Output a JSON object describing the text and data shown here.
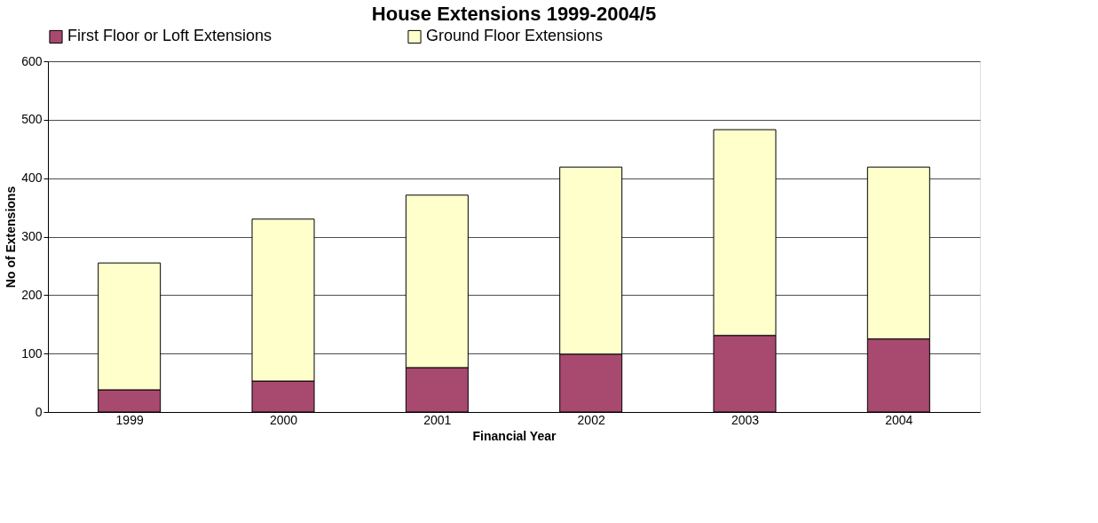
{
  "chart_data": {
    "type": "bar",
    "title": "House Extensions 1999-2004/5",
    "xlabel": "Financial Year",
    "ylabel": "No of Extensions",
    "categories": [
      "1999",
      "2000",
      "2001",
      "2002",
      "2003",
      "2004"
    ],
    "series": [
      {
        "name": "First Floor or Loft Extensions",
        "color": "#a8496f",
        "values": [
          38,
          53,
          76,
          99,
          131,
          125
        ]
      },
      {
        "name": "Ground Floor Extensions",
        "color": "#ffffcc",
        "values": [
          217,
          277,
          295,
          320,
          352,
          294
        ]
      }
    ],
    "stacked": true,
    "ylim": [
      0,
      600
    ],
    "yticks": [
      0,
      100,
      200,
      300,
      400,
      500,
      600
    ],
    "grid": "y",
    "legend": "top"
  }
}
